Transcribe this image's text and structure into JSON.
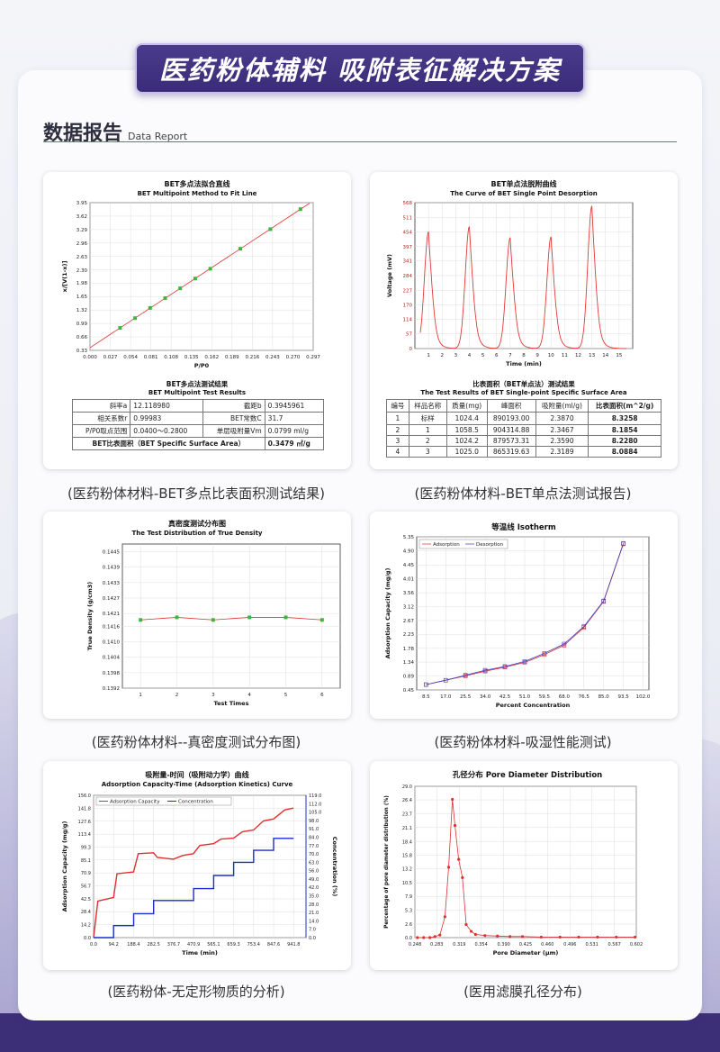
{
  "banner": {
    "title": "医药粉体辅料  吸附表征解决方案"
  },
  "section": {
    "title_zh": "数据报告",
    "title_en": "Data Report"
  },
  "panels": {
    "p1": {
      "caption": "(医药粉体材料-BET多点比表面积测试结果)",
      "chart_title_zh": "BET多点法拟合直线",
      "chart_title_en": "BET Multipoint Method to Fit Line",
      "table_title_zh": "BET多点法测试结果",
      "table_title_en": "BET Multipoint Test Results",
      "rows": [
        [
          "斜率a",
          "12.118980",
          "截距b",
          "0.3945961"
        ],
        [
          "相关系数r",
          "0.99983",
          "BET常数C",
          "31.7"
        ],
        [
          "P/P0取点范围",
          "0.0400～0.2800",
          "单层吸附量Vm",
          "0.0799 ml/g"
        ]
      ],
      "sa_label": "BET比表面积（BET Specific Surface Area）",
      "sa_value": "0.3479 ㎡/g"
    },
    "p2": {
      "caption": "(医药粉体材料-BET单点法测试报告)",
      "chart_title_zh": "BET单点法脱附曲线",
      "chart_title_en": "The Curve of BET Single Point Desorption",
      "table_title_zh": "比表面积（BET单点法）测试结果",
      "table_title_en": "The Test Results of BET Single-point Specific Surface Area",
      "headers": [
        "编号",
        "样品名称",
        "质量(mg)",
        "峰面积",
        "吸附量(ml/g)",
        "比表面积(m^2/g)"
      ],
      "rows": [
        [
          "1",
          "标样",
          "1024.4",
          "890193.00",
          "2.3870",
          "8.3258"
        ],
        [
          "2",
          "1",
          "1058.5",
          "904314.88",
          "2.3467",
          "8.1854"
        ],
        [
          "3",
          "2",
          "1024.2",
          "879573.31",
          "2.3590",
          "8.2280"
        ],
        [
          "4",
          "3",
          "1025.0",
          "865319.63",
          "2.3189",
          "8.0884"
        ]
      ]
    },
    "p3": {
      "caption": "(医药粉体材料--真密度测试分布图)",
      "chart_title_zh": "真密度测试分布图",
      "chart_title_en": "The Test Distribution of True Density"
    },
    "p4": {
      "caption": "(医药粉体材料-吸湿性能测试)",
      "chart_title": "等温线 Isotherm"
    },
    "p5": {
      "caption": "(医药粉体-无定形物质的分析)",
      "chart_title_zh": "吸附量-时间（吸附动力学）曲线",
      "chart_title_en": "Adsorption Capacity-Time (Adsorption Kinetics) Curve"
    },
    "p6": {
      "caption": "(医用滤膜孔径分布)",
      "chart_title": "孔径分布 Pore Diameter Distribution"
    }
  },
  "chart_data": [
    {
      "id": "bet-multipoint",
      "type": "scatter",
      "title": "BET Multipoint Method to Fit Line",
      "xlabel": "P/P0",
      "ylabel": "x/[V(1-x)]",
      "xlim": [
        0.0,
        0.297
      ],
      "ylim": [
        0.33,
        3.95
      ],
      "xticks": [
        "0.000",
        "0.027",
        "0.054",
        "0.081",
        "0.108",
        "0.135",
        "0.162",
        "0.189",
        "0.216",
        "0.243",
        "0.270",
        "0.297"
      ],
      "yticks": [
        "0.33",
        "0.66",
        "0.99",
        "1.32",
        "1.65",
        "1.98",
        "2.30",
        "2.63",
        "2.96",
        "3.29",
        "3.62",
        "3.95"
      ],
      "x": [
        0.04,
        0.06,
        0.08,
        0.1,
        0.12,
        0.14,
        0.16,
        0.2,
        0.24,
        0.28
      ],
      "y": [
        0.88,
        1.12,
        1.37,
        1.61,
        1.85,
        2.09,
        2.33,
        2.82,
        3.3,
        3.79
      ],
      "fit": {
        "slope": 12.11898,
        "intercept": 0.3945961
      },
      "grid": true
    },
    {
      "id": "bet-single-point",
      "type": "line",
      "title": "The Curve of BET Single Point Desorption",
      "xlabel": "Time (min)",
      "ylabel": "Voltage (mV)",
      "xlim": [
        0,
        16
      ],
      "ylim": [
        0,
        568
      ],
      "xticks": [
        "1",
        "2",
        "3",
        "4",
        "5",
        "6",
        "7",
        "8",
        "9",
        "10",
        "11",
        "12",
        "13",
        "14",
        "15"
      ],
      "yticks": [
        "0",
        "57",
        "114",
        "170",
        "227",
        "284",
        "341",
        "397",
        "454",
        "511",
        "568"
      ],
      "peaks": [
        {
          "t": 1.0,
          "v": 455
        },
        {
          "t": 4.0,
          "v": 475
        },
        {
          "t": 7.0,
          "v": 432
        },
        {
          "t": 10.0,
          "v": 435
        },
        {
          "t": 13.0,
          "v": 555
        }
      ]
    },
    {
      "id": "true-density",
      "type": "line",
      "title": "The Test Distribution of True Density",
      "xlabel": "Test Times",
      "ylabel": "True Density (g/cm3)",
      "xlim": [
        0.5,
        6.5
      ],
      "ylim": [
        0.1392,
        0.1448
      ],
      "xticks": [
        "1",
        "2",
        "3",
        "4",
        "5",
        "6"
      ],
      "yticks": [
        "0.1392",
        "0.1398",
        "0.1404",
        "0.1410",
        "0.1416",
        "0.1421",
        "0.1427",
        "0.1433",
        "0.1439",
        "0.1445"
      ],
      "x": [
        1,
        2,
        3,
        4,
        5,
        6
      ],
      "y": [
        0.14185,
        0.14195,
        0.14185,
        0.14195,
        0.14195,
        0.14185
      ]
    },
    {
      "id": "isotherm",
      "type": "line",
      "title": "等温线 Isotherm",
      "xlabel": "Percent Concentration",
      "ylabel": "Adsorption Capacity (mg/g)",
      "xlim": [
        4.5,
        104.5
      ],
      "ylim": [
        0.45,
        5.35
      ],
      "xticks": [
        "8.5",
        "17.0",
        "25.5",
        "34.0",
        "42.5",
        "51.0",
        "59.5",
        "68.0",
        "76.5",
        "85.0",
        "93.5",
        "102.0"
      ],
      "yticks": [
        "0.45",
        "0.89",
        "1.34",
        "1.78",
        "2.23",
        "2.67",
        "3.12",
        "3.56",
        "4.01",
        "4.45",
        "4.90",
        "5.35"
      ],
      "series": [
        {
          "name": "Adsorption",
          "x": [
            8.5,
            17.0,
            25.5,
            34.0,
            42.5,
            51.0,
            59.5,
            68.0,
            76.5,
            85.0,
            93.5
          ],
          "y": [
            0.62,
            0.76,
            0.9,
            1.05,
            1.18,
            1.33,
            1.58,
            1.88,
            2.45,
            3.28,
            5.12
          ]
        },
        {
          "name": "Desorption",
          "x": [
            8.5,
            17.0,
            25.5,
            34.0,
            42.5,
            51.0,
            59.5,
            68.0,
            76.5,
            85.0,
            93.5
          ],
          "y": [
            0.62,
            0.76,
            0.92,
            1.08,
            1.2,
            1.36,
            1.62,
            1.92,
            2.48,
            3.3,
            5.14
          ]
        }
      ],
      "legend": "top-left"
    },
    {
      "id": "adsorption-kinetics",
      "type": "line",
      "title": "Adsorption Capacity-Time (Adsorption Kinetics) Curve",
      "xlabel": "Time (min)",
      "ylabel": "Adsorption Capacity (mg/g)",
      "y2label": "Concentration (%)",
      "xlim": [
        0,
        1000
      ],
      "ylim": [
        0,
        156.0
      ],
      "y2lim": [
        0,
        119.0
      ],
      "xticks": [
        "0.0",
        "94.2",
        "188.4",
        "282.5",
        "376.7",
        "470.9",
        "565.1",
        "659.3",
        "753.4",
        "847.6",
        "941.8"
      ],
      "yticks": [
        "0.0",
        "14.2",
        "28.4",
        "42.5",
        "56.7",
        "70.9",
        "85.1",
        "99.3",
        "113.4",
        "127.6",
        "141.8",
        "156.0"
      ],
      "y2ticks": [
        "0.0",
        "7.0",
        "14.0",
        "21.0",
        "28.0",
        "35.0",
        "42.0",
        "49.0",
        "56.0",
        "63.0",
        "70.0",
        "77.0",
        "84.0",
        "91.0",
        "98.0",
        "105.0",
        "112.0",
        "119.0"
      ],
      "series": [
        {
          "name": "Adsorption  Capacity",
          "x": [
            0,
            20,
            94,
            110,
            188,
            210,
            282,
            300,
            376,
            420,
            470,
            500,
            565,
            600,
            659,
            700,
            753,
            800,
            847,
            900,
            941
          ],
          "y": [
            0,
            40,
            44,
            70,
            72,
            92,
            93,
            88,
            86,
            90,
            92,
            101,
            103,
            108,
            109,
            116,
            118,
            128,
            130,
            140,
            142
          ]
        },
        {
          "name": "Concentration",
          "x": [
            0,
            94.2,
            94.2,
            188.4,
            188.4,
            282.5,
            282.5,
            470.9,
            470.9,
            565.1,
            565.1,
            659.3,
            659.3,
            753.4,
            753.4,
            847.6,
            847.6,
            941.8
          ],
          "y": [
            0,
            0,
            10,
            10,
            20,
            20,
            31,
            31,
            41,
            41,
            52,
            52,
            63,
            63,
            73,
            73,
            83,
            83
          ]
        }
      ],
      "legend": "top-left"
    },
    {
      "id": "pore-distribution",
      "type": "line",
      "title": "孔径分布 Pore Diameter Distribution",
      "xlabel": "Pore Diameter (μm)",
      "ylabel": "Percentage of pore diameter distribution (%)",
      "xlim": [
        0.248,
        0.602
      ],
      "ylim": [
        0,
        29.0
      ],
      "xticks": [
        "0.248",
        "0.283",
        "0.319",
        "0.354",
        "0.390",
        "0.425",
        "0.460",
        "0.496",
        "0.531",
        "0.567",
        "0.602"
      ],
      "yticks": [
        "0.0",
        "2.6",
        "5.3",
        "7.9",
        "10.5",
        "13.2",
        "15.8",
        "18.4",
        "21.1",
        "23.7",
        "26.4",
        "29.0"
      ],
      "x": [
        0.252,
        0.262,
        0.272,
        0.28,
        0.288,
        0.296,
        0.302,
        0.308,
        0.312,
        0.318,
        0.324,
        0.33,
        0.338,
        0.345,
        0.36,
        0.38,
        0.4,
        0.42,
        0.45,
        0.48,
        0.51,
        0.54,
        0.57,
        0.6
      ],
      "y": [
        0,
        0,
        0,
        0.2,
        0.5,
        4.0,
        13.5,
        26.5,
        21.5,
        15.0,
        11.5,
        2.5,
        1.2,
        0.6,
        0.4,
        0.3,
        0.2,
        0.2,
        0.1,
        0.1,
        0.1,
        0.1,
        0.1,
        0.1
      ]
    }
  ]
}
